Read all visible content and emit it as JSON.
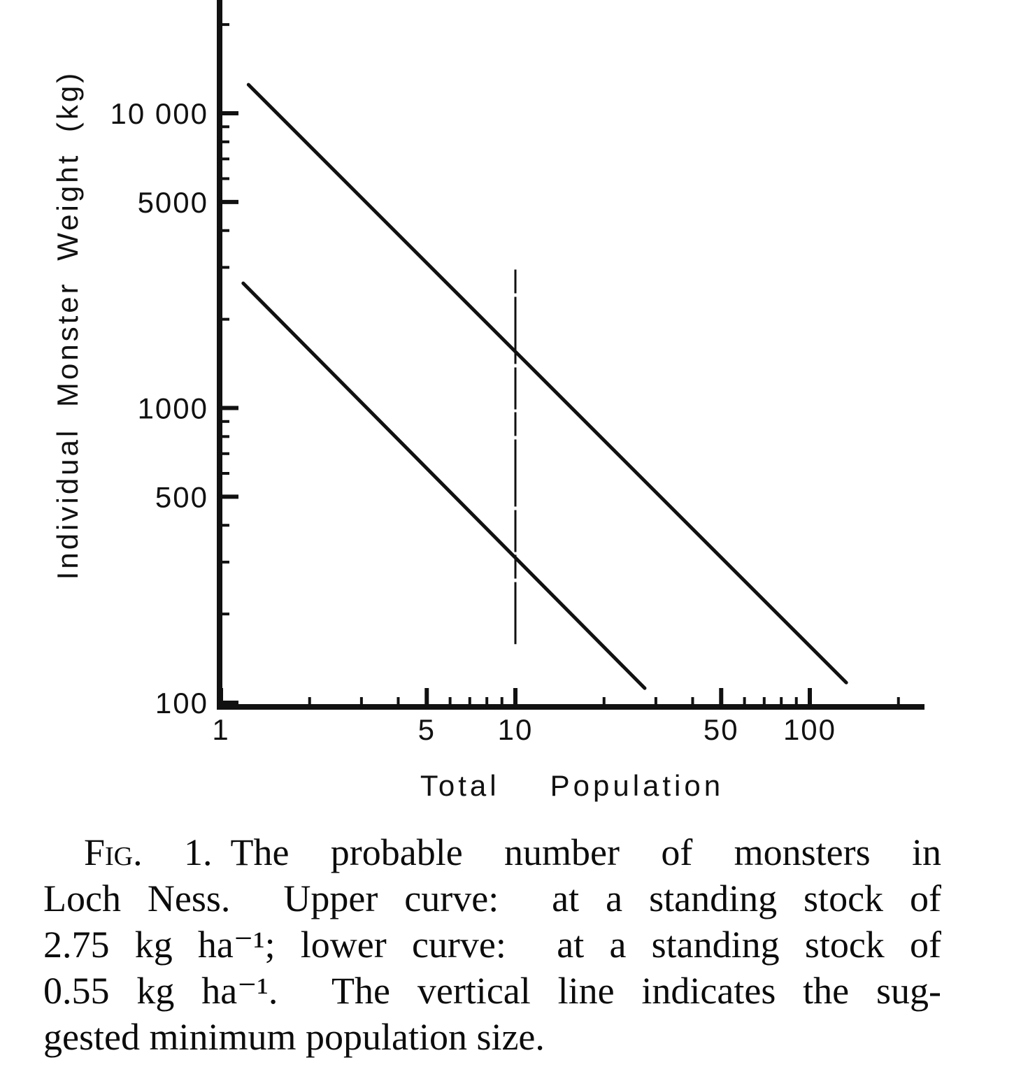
{
  "chart_data": {
    "type": "line",
    "title": "",
    "x_axis": {
      "label": "Total Population",
      "label_words": [
        "Total",
        "Population"
      ],
      "scale": "log",
      "range": [
        1,
        250
      ],
      "major_ticks": [
        {
          "value": 1,
          "label": "1"
        },
        {
          "value": 5,
          "label": "5"
        },
        {
          "value": 10,
          "label": "10"
        },
        {
          "value": 50,
          "label": "50"
        },
        {
          "value": 100,
          "label": "100"
        }
      ],
      "minor_ticks": [
        2,
        3,
        4,
        6,
        7,
        8,
        9,
        20,
        30,
        40,
        60,
        70,
        80,
        90,
        200
      ]
    },
    "y_axis": {
      "label": "Individual Monster Weight (kg)",
      "scale": "log",
      "range": [
        100,
        24000
      ],
      "major_ticks": [
        {
          "value": 10000,
          "label": "10 000"
        },
        {
          "value": 5000,
          "label": "5000"
        },
        {
          "value": 1000,
          "label": "1000"
        },
        {
          "value": 500,
          "label": "500"
        },
        {
          "value": 100,
          "label": "100"
        }
      ],
      "minor_ticks": [
        200,
        300,
        400,
        600,
        700,
        800,
        900,
        2000,
        3000,
        4000,
        6000,
        7000,
        8000,
        9000,
        20000
      ]
    },
    "series": [
      {
        "name": "upper curve",
        "standing_stock": "2.75 kg ha⁻¹",
        "points": [
          {
            "population": 1.24,
            "weight_kg": 12500
          },
          {
            "population": 133,
            "weight_kg": 117
          }
        ]
      },
      {
        "name": "lower curve",
        "standing_stock": "0.55 kg ha⁻¹",
        "points": [
          {
            "population": 1.19,
            "weight_kg": 2650
          },
          {
            "population": 27.5,
            "weight_kg": 112
          }
        ]
      }
    ],
    "vertical_line": {
      "population": 10,
      "weight_span_kg": [
        158,
        2950
      ],
      "meaning": "suggested minimum population size"
    }
  },
  "caption": {
    "fig_label": "Fig. 1.",
    "line1_rest": "The probable number of monsters in",
    "line2": "Loch Ness.  Upper curve:  at a standing stock of",
    "line3": "2.75 kg ha⁻¹; lower curve:  at a standing stock of",
    "line4": "0.55 kg ha⁻¹.  The vertical line indicates the sug-",
    "line5": "gested minimum population size."
  }
}
